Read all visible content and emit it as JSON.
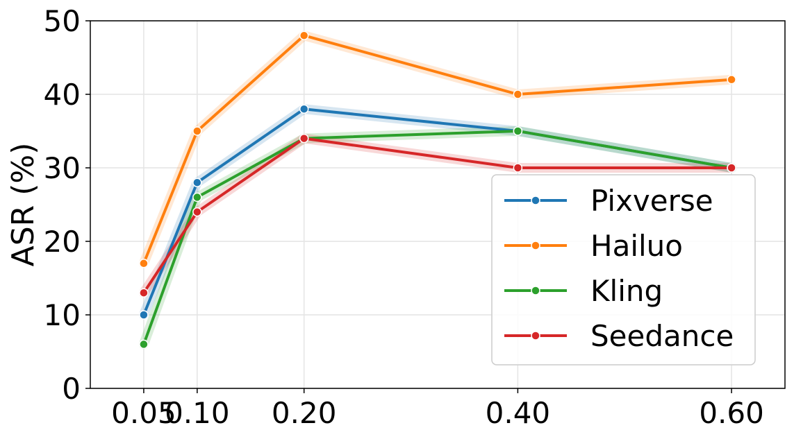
{
  "chart_data": {
    "type": "line",
    "title": "",
    "xlabel": "",
    "ylabel": "ASR (%)",
    "x": [
      0.05,
      0.1,
      0.2,
      0.4,
      0.6
    ],
    "x_tick_labels": [
      "0.05",
      "0.10",
      "0.20",
      "0.40",
      "0.60"
    ],
    "xlim": [
      0.0,
      0.65
    ],
    "ylim": [
      0,
      50
    ],
    "y_ticks": [
      0,
      10,
      20,
      30,
      40,
      50
    ],
    "y_tick_labels": [
      "0",
      "10",
      "20",
      "30",
      "40",
      "50"
    ],
    "grid": true,
    "legend_position": "lower-right",
    "series": [
      {
        "name": "Pixverse",
        "color": "#1f77b4",
        "values": [
          10,
          28,
          38,
          35,
          30
        ]
      },
      {
        "name": "Hailuo",
        "color": "#ff7f0e",
        "values": [
          17,
          35,
          48,
          40,
          42
        ]
      },
      {
        "name": "Kling",
        "color": "#2ca02c",
        "values": [
          6,
          26,
          34,
          35,
          30
        ]
      },
      {
        "name": "Seedance",
        "color": "#d62728",
        "values": [
          13,
          24,
          34,
          30,
          30
        ]
      }
    ]
  }
}
